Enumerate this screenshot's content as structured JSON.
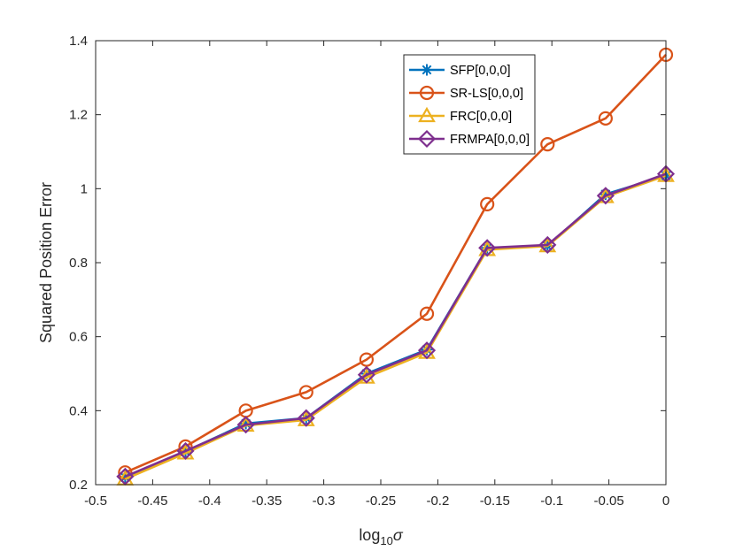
{
  "chart_data": {
    "type": "line",
    "title": "",
    "xlabel": "log",
    "xlabel_sub": "10",
    "xlabel_symbol": "σ",
    "ylabel": "Squared Position Error",
    "xlim": [
      -0.5,
      0
    ],
    "ylim": [
      0.2,
      1.4
    ],
    "x_ticks": [
      -0.5,
      -0.45,
      -0.4,
      -0.35,
      -0.3,
      -0.25,
      -0.2,
      -0.15,
      -0.1,
      -0.05,
      0
    ],
    "x_tick_labels": [
      "-0.5",
      "-0.45",
      "-0.4",
      "-0.35",
      "-0.3",
      "-0.25",
      "-0.2",
      "-0.15",
      "-0.1",
      "-0.05",
      "0"
    ],
    "y_ticks": [
      0.2,
      0.4,
      0.6,
      0.8,
      1.0,
      1.2,
      1.4
    ],
    "y_tick_labels": [
      "0.2",
      "0.4",
      "0.6",
      "0.8",
      "1",
      "1.2",
      "1.4"
    ],
    "grid": false,
    "legend_position": "top-right",
    "x": [
      -0.4741,
      -0.4212,
      -0.3683,
      -0.3154,
      -0.2625,
      -0.2096,
      -0.1567,
      -0.1038,
      -0.0529,
      0.0
    ],
    "series": [
      {
        "name": "SFP[0,0,0]",
        "color": "#0072BD",
        "marker": "asterisk",
        "values": [
          0.22,
          0.29,
          0.365,
          0.38,
          0.5,
          0.565,
          0.84,
          0.845,
          0.985,
          1.035
        ]
      },
      {
        "name": "SR-LS[0,0,0]",
        "color": "#D95319",
        "marker": "circle",
        "values": [
          0.233,
          0.303,
          0.4,
          0.45,
          0.538,
          0.662,
          0.958,
          1.12,
          1.19,
          1.362
        ]
      },
      {
        "name": "FRC[0,0,0]",
        "color": "#EDB120",
        "marker": "triangle",
        "values": [
          0.215,
          0.285,
          0.36,
          0.375,
          0.49,
          0.557,
          0.835,
          0.845,
          0.978,
          1.035
        ]
      },
      {
        "name": "FRMPA[0,0,0]",
        "color": "#7E2F8E",
        "marker": "diamond",
        "values": [
          0.222,
          0.291,
          0.362,
          0.38,
          0.497,
          0.563,
          0.84,
          0.848,
          0.981,
          1.04
        ]
      }
    ]
  }
}
